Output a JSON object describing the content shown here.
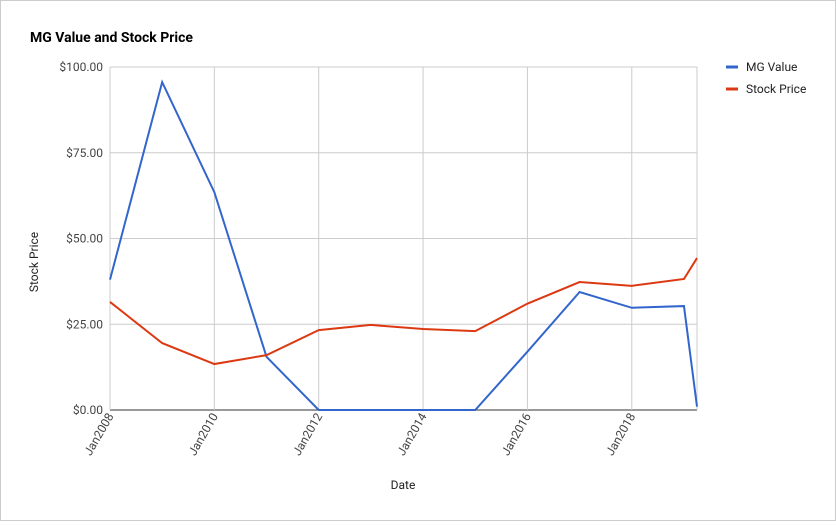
{
  "chart_data": {
    "type": "line",
    "title": "MG Value and Stock Price",
    "x_label": "Date",
    "y_label": "Stock Price",
    "x": [
      "2008-01",
      "2009-01",
      "2010-01",
      "2011-01",
      "2012-01",
      "2013-01",
      "2014-01",
      "2015-01",
      "2016-01",
      "2017-01",
      "2018-01",
      "2019-01",
      "2019-04"
    ],
    "series": [
      {
        "name": "MG Value",
        "color": "#3366cc",
        "values": [
          38,
          95.6,
          63.5,
          15.5,
          0,
          0,
          0,
          0,
          17,
          34.4,
          29.8,
          30.3,
          1
        ]
      },
      {
        "name": "Stock Price",
        "color": "#dc3912",
        "values": [
          31.5,
          19.5,
          13.4,
          16,
          23.3,
          24.8,
          23.6,
          23,
          31,
          37.3,
          36.2,
          38.2,
          44.3
        ]
      }
    ],
    "xlim": [
      "2008-01",
      "2019-04"
    ],
    "xticks": [
      {
        "value": "2008-01",
        "label": "Jan2008"
      },
      {
        "value": "2010-01",
        "label": "Jan2010"
      },
      {
        "value": "2012-01",
        "label": "Jan2012"
      },
      {
        "value": "2014-01",
        "label": "Jan2014"
      },
      {
        "value": "2016-01",
        "label": "Jan2016"
      },
      {
        "value": "2018-01",
        "label": "Jan2018"
      }
    ],
    "ylim": [
      0,
      100
    ],
    "yticks": [
      {
        "value": 0,
        "label": "$0.00"
      },
      {
        "value": 25,
        "label": "$25.00"
      },
      {
        "value": 50,
        "label": "$50.00"
      },
      {
        "value": 75,
        "label": "$75.00"
      },
      {
        "value": 100,
        "label": "$100.00"
      }
    ],
    "grid": true,
    "legend": "right"
  }
}
